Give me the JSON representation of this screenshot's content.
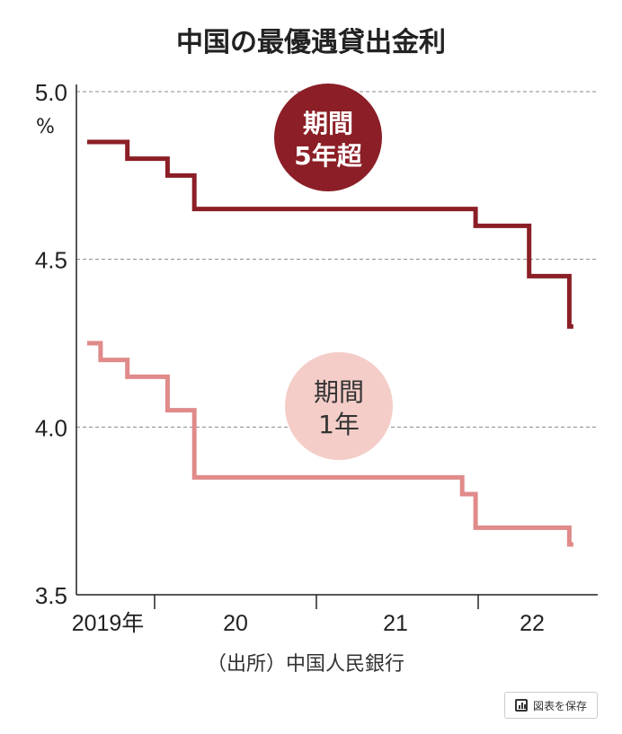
{
  "chart_data": {
    "type": "line",
    "title": "中国の最優遇貸出金利",
    "ylabel": "%",
    "ylim": [
      3.5,
      5.0
    ],
    "yticks": [
      "5.0",
      "4.5",
      "4.0",
      "3.5"
    ],
    "ytick_values": [
      5.0,
      4.5,
      4.0,
      3.5
    ],
    "xtick_labels": [
      "2019年",
      "20",
      "21",
      "22"
    ],
    "x_unit": "month index from Aug 2019",
    "grid": "horizontal dashed",
    "source": "（出所）中国人民銀行",
    "series": [
      {
        "name": "期間5年超",
        "label_lines": [
          "期間",
          "5年超"
        ],
        "color": "#8b1e26",
        "steps": [
          [
            0,
            4.85
          ],
          [
            3,
            4.8
          ],
          [
            6,
            4.75
          ],
          [
            8,
            4.65
          ],
          [
            29,
            4.6
          ],
          [
            33,
            4.45
          ],
          [
            36,
            4.3
          ],
          [
            36.3,
            4.3
          ]
        ]
      },
      {
        "name": "期間1年",
        "label_lines": [
          "期間",
          "1年"
        ],
        "color": "#e08a8a",
        "steps": [
          [
            0,
            4.25
          ],
          [
            1,
            4.2
          ],
          [
            3,
            4.15
          ],
          [
            6,
            4.05
          ],
          [
            8,
            3.85
          ],
          [
            28,
            3.8
          ],
          [
            29,
            3.7
          ],
          [
            36,
            3.65
          ],
          [
            36.3,
            3.65
          ]
        ]
      }
    ]
  },
  "toolbar": {
    "save_label": "図表を保存",
    "save_icon": "bar-chart-icon"
  }
}
